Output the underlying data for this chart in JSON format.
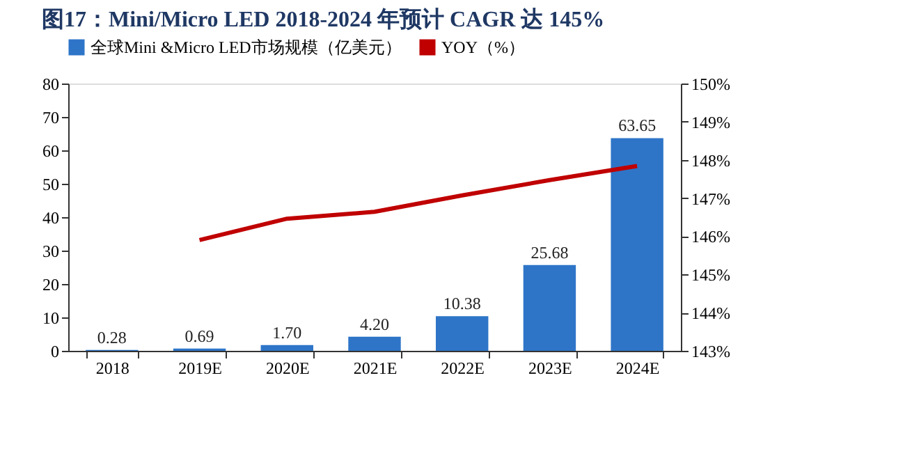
{
  "chart_data": {
    "type": "bar",
    "title": "图17：Mini/Micro LED 2018-2024 年预计 CAGR 达 145%",
    "categories": [
      "2018",
      "2019E",
      "2020E",
      "2021E",
      "2022E",
      "2023E",
      "2024E"
    ],
    "series": [
      {
        "name": "全球Mini &Micro LED市场规模（亿美元）",
        "color": "#2e75c8",
        "values": [
          0.28,
          0.69,
          1.7,
          4.2,
          10.38,
          25.68,
          63.65
        ],
        "value_labels": [
          "0.28",
          "0.69",
          "1.70",
          "4.20",
          "10.38",
          "25.68",
          "63.65"
        ]
      },
      {
        "name": "YOY（%）",
        "type": "line",
        "axis": "y2",
        "color": "#c00000",
        "values": [
          null,
          145.9,
          146.46,
          146.64,
          147.07,
          147.47,
          147.84
        ]
      }
    ],
    "ylim": [
      0,
      80
    ],
    "yticks": [
      0,
      10,
      20,
      30,
      40,
      50,
      60,
      70,
      80
    ],
    "y2lim": [
      143,
      150
    ],
    "y2ticks": [
      {
        "value": 143,
        "label": "143%"
      },
      {
        "value": 144,
        "label": "144%"
      },
      {
        "value": 145,
        "label": "145%"
      },
      {
        "value": 146,
        "label": "146%"
      },
      {
        "value": 147,
        "label": "147%"
      },
      {
        "value": 148,
        "label": "148%"
      },
      {
        "value": 149,
        "label": "149%"
      },
      {
        "value": 150,
        "label": "150%"
      }
    ],
    "legend": "top",
    "grid": false,
    "marker": "none",
    "line_style": "solid"
  }
}
